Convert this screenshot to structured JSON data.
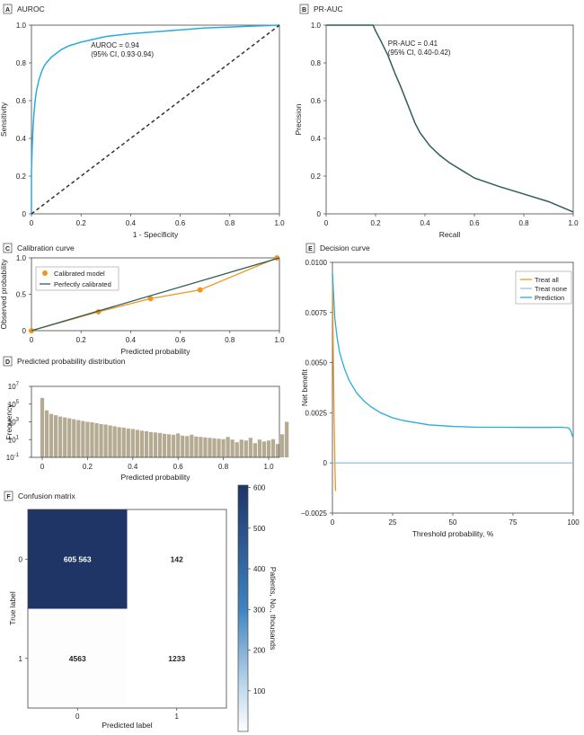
{
  "chart_data": [
    {
      "panel": "A",
      "type": "line",
      "title": "AUROC",
      "xlabel": "1 - Specificity",
      "ylabel": "Sensitivity",
      "xlim": [
        0,
        1
      ],
      "ylim": [
        0,
        1
      ],
      "x_ticks": [
        "0",
        "0.2",
        "0.4",
        "0.6",
        "0.8",
        "1.0"
      ],
      "y_ticks": [
        "0",
        "0.2",
        "0.4",
        "0.6",
        "0.8",
        "1.0"
      ],
      "annotation": [
        "AUROC = 0.94",
        "(95% CI, 0.93-0.94)"
      ],
      "series": [
        {
          "x": [
            0,
            0,
            0.003,
            0.006,
            0.01,
            0.015,
            0.02,
            0.03,
            0.04,
            0.05,
            0.06,
            0.08,
            0.1,
            0.12,
            0.15,
            0.2,
            0.25,
            0.3,
            0.4,
            0.5,
            0.6,
            0.7,
            0.8,
            0.9,
            1.0
          ],
          "y": [
            0,
            0.22,
            0.35,
            0.45,
            0.53,
            0.6,
            0.65,
            0.71,
            0.75,
            0.78,
            0.8,
            0.83,
            0.85,
            0.87,
            0.89,
            0.91,
            0.925,
            0.94,
            0.955,
            0.965,
            0.975,
            0.985,
            0.99,
            0.995,
            1.0
          ],
          "color": "#29ABE2"
        },
        {
          "x": [
            0,
            1
          ],
          "y": [
            0,
            1
          ],
          "color": "#333333",
          "dashed": true
        }
      ]
    },
    {
      "panel": "B",
      "type": "line",
      "title": "PR-AUC",
      "xlabel": "Recall",
      "ylabel": "Precision",
      "xlim": [
        0,
        1
      ],
      "ylim": [
        0,
        1
      ],
      "x_ticks": [
        "0",
        "0.2",
        "0.4",
        "0.6",
        "0.8",
        "1.0"
      ],
      "y_ticks": [
        "0",
        "0.2",
        "0.4",
        "0.6",
        "0.8",
        "1.0"
      ],
      "annotation": [
        "PR-AUC = 0.41",
        "(95% CI, 0.40-0.42)"
      ],
      "series": [
        {
          "x": [
            0,
            0.05,
            0.1,
            0.15,
            0.19,
            0.2,
            0.22,
            0.25,
            0.28,
            0.3,
            0.33,
            0.36,
            0.38,
            0.42,
            0.46,
            0.5,
            0.55,
            0.6,
            0.7,
            0.8,
            0.9,
            1.0
          ],
          "y": [
            1.0,
            1.0,
            1.0,
            1.0,
            1.0,
            0.97,
            0.92,
            0.84,
            0.74,
            0.68,
            0.58,
            0.48,
            0.43,
            0.36,
            0.31,
            0.27,
            0.23,
            0.19,
            0.145,
            0.105,
            0.065,
            0.01
          ],
          "color": "#2F5E5A"
        }
      ]
    },
    {
      "panel": "C",
      "type": "line",
      "title": "Calibration curve",
      "xlabel": "Predicted probability",
      "ylabel": "Observed probability",
      "xlim": [
        0,
        1
      ],
      "ylim": [
        0,
        1
      ],
      "x_ticks": [
        "0",
        "0.2",
        "0.4",
        "0.6",
        "0.8",
        "1.0"
      ],
      "y_ticks": [
        "0",
        "0.5",
        "1.0"
      ],
      "legend": [
        "Calibrated model",
        "Perfectly calibrated"
      ],
      "series": [
        {
          "name": "Calibrated model",
          "x": [
            0.0,
            0.27,
            0.48,
            0.68,
            0.99
          ],
          "y": [
            0.0,
            0.26,
            0.44,
            0.56,
            1.0
          ],
          "color": "#F0961E"
        },
        {
          "name": "Perfectly calibrated",
          "x": [
            0,
            1
          ],
          "y": [
            0,
            1
          ],
          "color": "#2F5E5A"
        }
      ]
    },
    {
      "panel": "D",
      "type": "bar",
      "title": "Predicted probability distribution",
      "xlabel": "Predicted probability",
      "ylabel": "Frequency",
      "xlim": [
        0,
        1
      ],
      "yscale": "log",
      "ylim_exp": [
        -1,
        7
      ],
      "x_ticks": [
        "0",
        "0.2",
        "0.4",
        "0.6",
        "0.8",
        "1.0"
      ],
      "y_ticks": [
        {
          "base": "10",
          "exp": "7"
        },
        {
          "base": "10",
          "exp": "5"
        },
        {
          "base": "10",
          "exp": "3"
        },
        {
          "base": "10",
          "exp": "1"
        },
        {
          "base": "10",
          "exp": "-1"
        }
      ],
      "bin_width": 0.02,
      "log10_values": [
        5.7,
        4.3,
        3.9,
        3.75,
        3.6,
        3.5,
        3.4,
        3.3,
        3.2,
        3.1,
        3.0,
        2.95,
        2.85,
        2.75,
        2.7,
        2.6,
        2.5,
        2.4,
        2.35,
        2.25,
        2.2,
        2.1,
        2.0,
        1.95,
        1.85,
        1.8,
        1.75,
        1.65,
        1.6,
        1.55,
        1.7,
        1.45,
        1.4,
        1.55,
        1.35,
        1.3,
        1.25,
        1.2,
        1.15,
        1.1,
        1.05,
        1.3,
        1.0,
        0.7,
        1.0,
        0.9,
        1.2,
        0.6,
        1.0,
        0.8,
        0.9,
        1.05,
        0.5,
        1.6,
        3.0
      ],
      "color": "#B5AB93"
    },
    {
      "panel": "E",
      "type": "line",
      "title": "Decision curve",
      "xlabel": "Threshold probability, %",
      "ylabel": "Net benefit",
      "xlim": [
        0,
        100
      ],
      "ylim": [
        -0.0025,
        0.01
      ],
      "x_ticks": [
        "0",
        "25",
        "50",
        "75",
        "100"
      ],
      "y_ticks": [
        "0.0100",
        "0.0075",
        "0.0050",
        "0.0025",
        "0",
        "−0.0025"
      ],
      "legend": [
        "Treat all",
        "Treat none",
        "Prediction"
      ],
      "series": [
        {
          "name": "Treat all",
          "x": [
            0,
            0.3,
            0.6,
            1.0,
            1.3
          ],
          "y": [
            0.0095,
            0.006,
            0.003,
            0.0,
            -0.0014
          ],
          "color": "#F0961E"
        },
        {
          "name": "Treat none",
          "x": [
            0,
            100
          ],
          "y": [
            0,
            0
          ],
          "color": "#9CC3D8"
        },
        {
          "name": "Prediction",
          "x": [
            0,
            1,
            2,
            3,
            5,
            7,
            10,
            13,
            16,
            20,
            25,
            30,
            40,
            50,
            60,
            70,
            80,
            90,
            95,
            98,
            99,
            99.8
          ],
          "y": [
            0.0095,
            0.0072,
            0.0062,
            0.0055,
            0.0047,
            0.0041,
            0.0035,
            0.0031,
            0.0028,
            0.0025,
            0.00225,
            0.0021,
            0.0019,
            0.00182,
            0.00178,
            0.00178,
            0.00177,
            0.00177,
            0.00178,
            0.00175,
            0.0016,
            0.0013
          ],
          "color": "#29ABE2"
        }
      ]
    },
    {
      "panel": "F",
      "type": "heatmap",
      "title": "Confusion matrix",
      "xlabel": "Predicted label",
      "ylabel": "True label",
      "x_categories": [
        "0",
        "1"
      ],
      "y_categories": [
        "0",
        "1"
      ],
      "cells": [
        [
          "605 563",
          "142"
        ],
        [
          "4563",
          "1233"
        ]
      ],
      "cell_values": [
        [
          605563,
          142
        ],
        [
          4563,
          1233
        ]
      ],
      "colorbar_label": "Patients, No., thousands",
      "colorbar_ticks": [
        "600",
        "500",
        "400",
        "300",
        "200",
        "100"
      ],
      "colorbar_range": [
        0,
        605.563
      ],
      "colors": {
        "high": "#1F3566",
        "low": "#FFFFFF"
      }
    }
  ]
}
